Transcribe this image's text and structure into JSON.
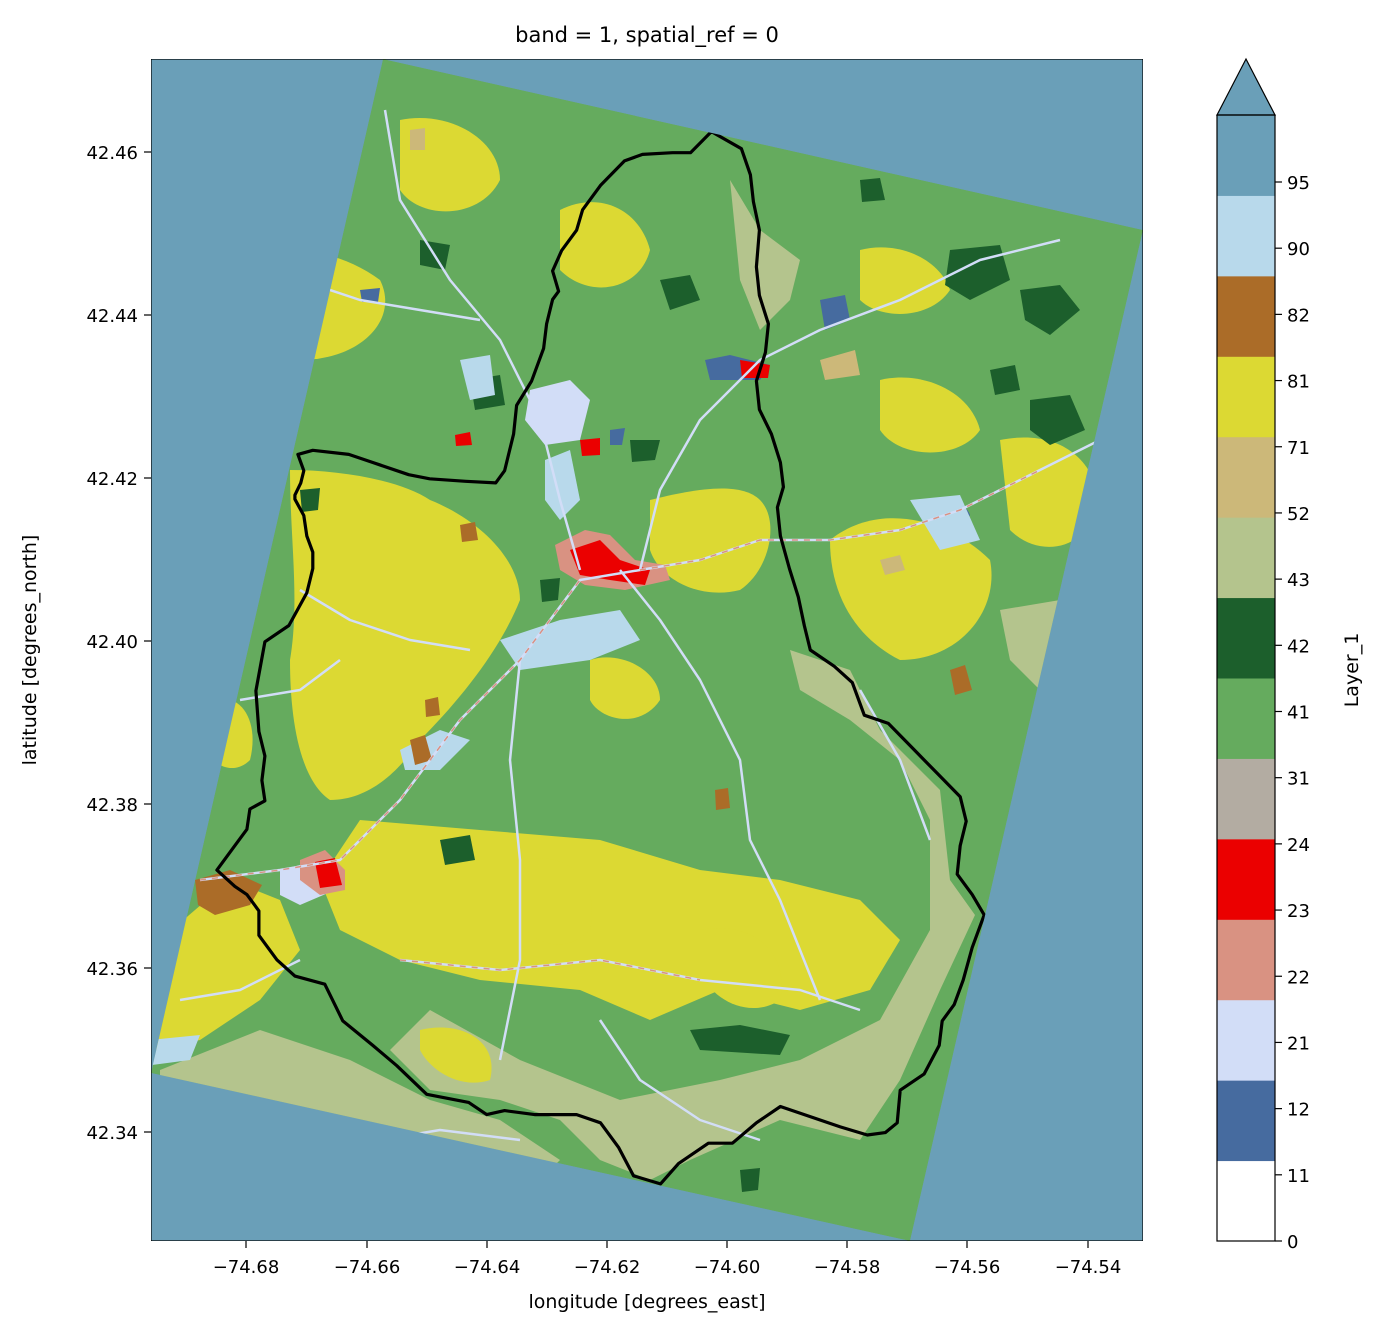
{
  "title": "band = 1, spatial_ref = 0",
  "xlabel": "longitude [degrees_east]",
  "ylabel": "latitude [degrees_north]",
  "colorbar_label": "Layer_1",
  "x_ticks": [
    "−74.68",
    "−74.66",
    "−74.64",
    "−74.62",
    "−74.60",
    "−74.58",
    "−74.56",
    "−74.54"
  ],
  "y_ticks": [
    "42.34",
    "42.36",
    "42.38",
    "42.40",
    "42.42",
    "42.44",
    "42.46"
  ],
  "colorbar_ticks": [
    "0",
    "11",
    "12",
    "21",
    "22",
    "23",
    "24",
    "31",
    "41",
    "42",
    "43",
    "52",
    "71",
    "81",
    "82",
    "90",
    "95"
  ],
  "colors": {
    "background": "#6a9fb8",
    "forest_green": "#65ab5e",
    "crop_yellow": "#dcd933",
    "hay_pasture": "#b4c48d",
    "evergreen": "#1c5f2c",
    "developed_high": "#eb0000",
    "developed_low": "#d99282",
    "developed_open": "#d2ddf7",
    "open_water": "#466b9f",
    "woody_wetland": "#b8d9eb",
    "shrub": "#ccb879",
    "barren": "#b3aca2",
    "brown": "#ab6c28",
    "boundary": "#000000"
  },
  "colorbar_colors": [
    "#ffffff",
    "#466b9f",
    "#d2ddf7",
    "#d99282",
    "#eb0000",
    "#b3aca2",
    "#65ab5e",
    "#1c5f2c",
    "#b4c48d",
    "#ccb879",
    "#dcd933",
    "#ab6c28",
    "#b8d9eb",
    "#6a9fb8"
  ],
  "chart_data": {
    "type": "heatmap",
    "title": "band = 1, spatial_ref = 0",
    "xlabel": "longitude [degrees_east]",
    "ylabel": "latitude [degrees_north]",
    "xlim": [
      -74.697,
      -74.5315
    ],
    "ylim": [
      42.3265,
      42.4715
    ],
    "colorbar": {
      "label": "Layer_1",
      "boundaries": [
        0,
        11,
        12,
        21,
        22,
        23,
        24,
        31,
        41,
        42,
        43,
        52,
        71,
        81,
        82,
        90,
        95
      ],
      "extend": "max"
    },
    "boundary_polygon": [
      [
        -74.6035,
        42.4626
      ],
      [
        -74.5985,
        42.4605
      ],
      [
        -74.597,
        42.4573
      ],
      [
        -74.5965,
        42.454
      ],
      [
        -74.5955,
        42.4505
      ],
      [
        -74.596,
        42.446
      ],
      [
        -74.5955,
        42.4425
      ],
      [
        -74.594,
        42.439
      ],
      [
        -74.5945,
        42.4355
      ],
      [
        -74.596,
        42.432
      ],
      [
        -74.5955,
        42.4285
      ],
      [
        -74.5935,
        42.4255
      ],
      [
        -74.592,
        42.422
      ],
      [
        -74.5915,
        42.419
      ],
      [
        -74.5925,
        42.4165
      ],
      [
        -74.592,
        42.413
      ],
      [
        -74.5905,
        42.409
      ],
      [
        -74.589,
        42.4055
      ],
      [
        -74.588,
        42.402
      ],
      [
        -74.587,
        42.399
      ],
      [
        -74.583,
        42.397
      ],
      [
        -74.58,
        42.395
      ],
      [
        -74.578,
        42.391
      ],
      [
        -74.574,
        42.39
      ],
      [
        -74.57,
        42.387
      ],
      [
        -74.566,
        42.384
      ],
      [
        -74.562,
        42.381
      ],
      [
        -74.561,
        42.378
      ],
      [
        -74.562,
        42.375
      ],
      [
        -74.5625,
        42.3715
      ],
      [
        -74.56,
        42.369
      ],
      [
        -74.558,
        42.3665
      ],
      [
        -74.56,
        42.3625
      ],
      [
        -74.5615,
        42.3585
      ],
      [
        -74.563,
        42.3555
      ],
      [
        -74.565,
        42.3535
      ],
      [
        -74.5655,
        42.3505
      ],
      [
        -74.568,
        42.347
      ],
      [
        -74.572,
        42.345
      ],
      [
        -74.5725,
        42.341
      ],
      [
        -74.5745,
        42.3398
      ],
      [
        -74.5775,
        42.3395
      ],
      [
        -74.582,
        42.3405
      ],
      [
        -74.588,
        42.342
      ],
      [
        -74.592,
        42.343
      ],
      [
        -74.596,
        42.341
      ],
      [
        -74.6,
        42.3385
      ],
      [
        -74.604,
        42.3385
      ],
      [
        -74.609,
        42.336
      ],
      [
        -74.612,
        42.3335
      ],
      [
        -74.6165,
        42.3345
      ],
      [
        -74.619,
        42.338
      ],
      [
        -74.622,
        42.341
      ],
      [
        -74.626,
        42.342
      ],
      [
        -74.633,
        42.342
      ],
      [
        -74.638,
        42.3425
      ],
      [
        -74.641,
        42.342
      ],
      [
        -74.644,
        42.3435
      ],
      [
        -74.651,
        42.3445
      ],
      [
        -74.656,
        42.348
      ],
      [
        -74.66,
        42.3505
      ],
      [
        -74.665,
        42.3535
      ],
      [
        -74.668,
        42.358
      ],
      [
        -74.673,
        42.359
      ],
      [
        -74.676,
        42.361
      ],
      [
        -74.679,
        42.364
      ],
      [
        -74.679,
        42.367
      ],
      [
        -74.681,
        42.369
      ],
      [
        -74.683,
        42.37
      ],
      [
        -74.686,
        42.372
      ],
      [
        -74.683,
        42.375
      ],
      [
        -74.681,
        42.377
      ],
      [
        -74.6805,
        42.3795
      ],
      [
        -74.678,
        42.3805
      ],
      [
        -74.6785,
        42.383
      ],
      [
        -74.678,
        42.386
      ],
      [
        -74.679,
        42.389
      ],
      [
        -74.6795,
        42.394
      ],
      [
        -74.678,
        42.4
      ],
      [
        -74.674,
        42.402
      ],
      [
        -74.671,
        42.406
      ],
      [
        -74.6705,
        42.4075
      ],
      [
        -74.67,
        42.409
      ],
      [
        -74.67,
        42.411
      ],
      [
        -74.671,
        42.413
      ],
      [
        -74.6715,
        42.4155
      ],
      [
        -74.673,
        42.4175
      ],
      [
        -74.673,
        42.418
      ],
      [
        -74.672,
        42.4195
      ],
      [
        -74.6715,
        42.421
      ],
      [
        -74.6725,
        42.423
      ],
      [
        -74.67,
        42.4235
      ],
      [
        -74.664,
        42.423
      ],
      [
        -74.66,
        42.422
      ],
      [
        -74.654,
        42.4205
      ],
      [
        -74.6505,
        42.42
      ],
      [
        -74.6445,
        42.4197
      ],
      [
        -74.6395,
        42.4195
      ],
      [
        -74.638,
        42.421
      ],
      [
        -74.6365,
        42.4255
      ],
      [
        -74.636,
        42.429
      ],
      [
        -74.6335,
        42.432
      ],
      [
        -74.6315,
        42.436
      ],
      [
        -74.631,
        42.439
      ],
      [
        -74.63,
        42.442
      ],
      [
        -74.629,
        42.443
      ],
      [
        -74.63,
        42.4455
      ],
      [
        -74.6285,
        42.448
      ],
      [
        -74.626,
        42.4505
      ],
      [
        -74.625,
        42.453
      ],
      [
        -74.622,
        42.456
      ],
      [
        -74.618,
        42.459
      ],
      [
        -74.615,
        42.4598
      ],
      [
        -74.61,
        42.46
      ],
      [
        -74.607,
        42.46
      ],
      [
        -74.6035,
        42.4626
      ]
    ]
  }
}
